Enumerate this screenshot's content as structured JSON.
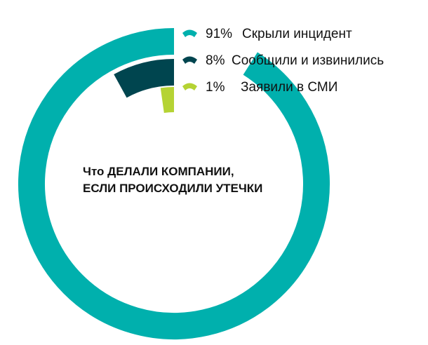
{
  "chart_data": {
    "type": "radial-bar",
    "title": "Что ДЕЛАЛИ КОМПАНИИ, ЕСЛИ ПРОИСХОДИЛИ УТЕЧКИ",
    "title_lines": [
      "Что ДЕЛАЛИ КОМПАНИИ,",
      "ЕСЛИ ПРОИСХОДИЛИ УТЕЧКИ"
    ],
    "unit": "%",
    "categories": [
      "Скрыли инцидент",
      "Сообщили и извинились",
      "Заявили в СМИ"
    ],
    "values": [
      91,
      8,
      1
    ],
    "value_labels": [
      "91%",
      "8%",
      "1%"
    ],
    "colors": [
      "#00b0ad",
      "#00454f",
      "#b5d334"
    ],
    "legend": {
      "position": "top-right",
      "items": [
        {
          "value": "91%",
          "label": "Скрыли инцидент",
          "color": "#00b0ad"
        },
        {
          "value": "8%",
          "label": "Сообщили и извинились",
          "color": "#00454f"
        },
        {
          "value": "1%",
          "label": "Заявили в СМИ",
          "color": "#b5d334"
        }
      ]
    }
  }
}
